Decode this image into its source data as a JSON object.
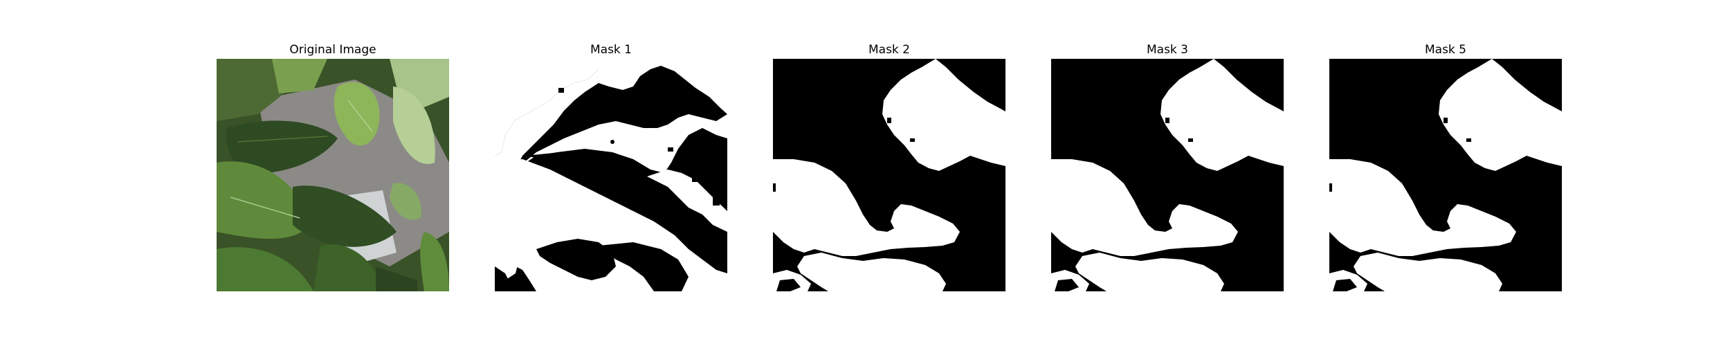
{
  "figure": {
    "panels": [
      {
        "title": "Original Image",
        "kind": "photo"
      },
      {
        "title": "Mask 1",
        "kind": "mask"
      },
      {
        "title": "Mask 2",
        "kind": "mask"
      },
      {
        "title": "Mask 3",
        "kind": "mask"
      },
      {
        "title": "Mask 5",
        "kind": "mask"
      }
    ]
  },
  "colors": {
    "mask_background": "#000000",
    "mask_foreground": "#ffffff",
    "leaf_dark": "#2f4a24",
    "leaf_mid": "#4f7434",
    "leaf_light": "#8fb36a",
    "background_gray": "#8c8a86"
  }
}
